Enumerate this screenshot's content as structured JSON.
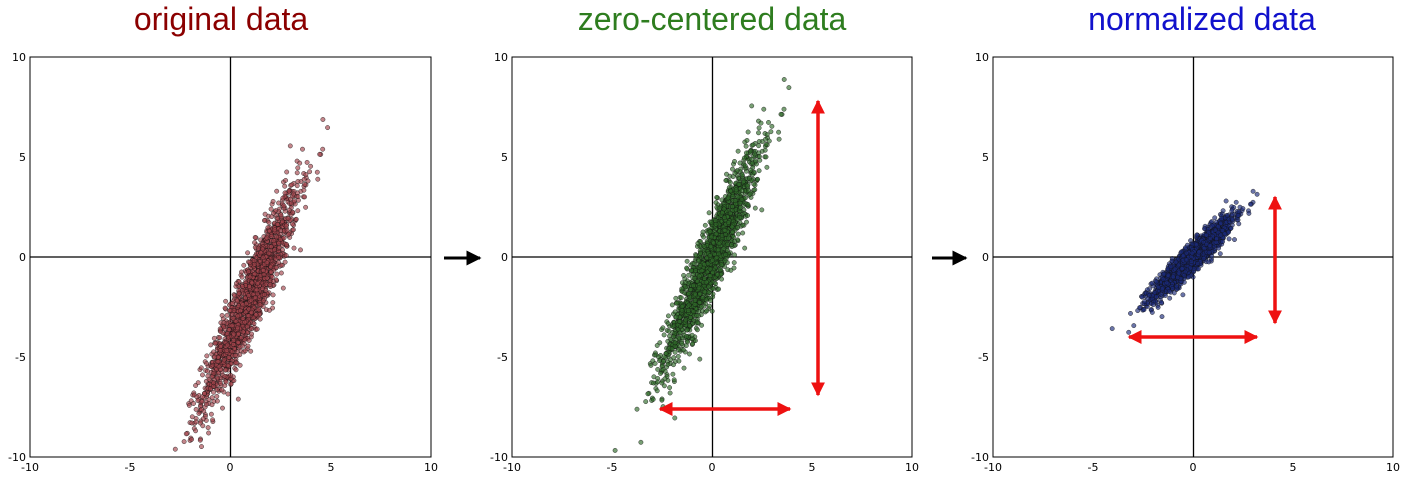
{
  "chart_data": [
    {
      "type": "scatter",
      "title": "original data",
      "title_color": "#8B0000",
      "point_color": "#A3434B",
      "xlim": [
        -10,
        10
      ],
      "ylim": [
        -10,
        10
      ],
      "x_ticks": [
        "-10",
        "-5",
        "0",
        "5",
        "10"
      ],
      "y_ticks": [
        "10",
        "5",
        "0",
        "-5",
        "-10"
      ],
      "grid": false,
      "distribution": {
        "mean_x": 1.0,
        "mean_y": -2.0,
        "std_x": 1.2,
        "std_y": 2.7,
        "correlation": 0.93,
        "count": 1600
      }
    },
    {
      "type": "scatter",
      "title": "zero-centered data",
      "title_color": "#2E7D1F",
      "point_color": "#2F6B2A",
      "xlim": [
        -10,
        10
      ],
      "ylim": [
        -10,
        10
      ],
      "x_ticks": [
        "-10",
        "-5",
        "0",
        "5",
        "10"
      ],
      "y_ticks": [
        "10",
        "5",
        "0",
        "-5",
        "-10"
      ],
      "grid": false,
      "distribution": {
        "mean_x": 0.0,
        "mean_y": 0.0,
        "std_x": 1.2,
        "std_y": 2.7,
        "correlation": 0.93,
        "count": 1600
      },
      "annotations": [
        {
          "type": "double-arrow",
          "color": "#EE1111",
          "from": [
            -2.6,
            -7.6
          ],
          "to": [
            3.9,
            -7.6
          ]
        },
        {
          "type": "double-arrow",
          "color": "#EE1111",
          "from": [
            5.3,
            7.8
          ],
          "to": [
            5.3,
            -6.9
          ]
        }
      ]
    },
    {
      "type": "scatter",
      "title": "normalized data",
      "title_color": "#1111CC",
      "point_color": "#1A2A7A",
      "xlim": [
        -10,
        10
      ],
      "ylim": [
        -10,
        10
      ],
      "x_ticks": [
        "-10",
        "-5",
        "0",
        "5",
        "10"
      ],
      "y_ticks": [
        "10",
        "5",
        "0",
        "-5",
        "-10"
      ],
      "grid": false,
      "distribution": {
        "mean_x": 0.0,
        "mean_y": 0.0,
        "std_x": 1.0,
        "std_y": 1.0,
        "correlation": 0.93,
        "count": 1600
      },
      "annotations": [
        {
          "type": "double-arrow",
          "color": "#EE1111",
          "from": [
            -3.2,
            -4.0
          ],
          "to": [
            3.2,
            -4.0
          ]
        },
        {
          "type": "double-arrow",
          "color": "#EE1111",
          "from": [
            4.1,
            3.0
          ],
          "to": [
            4.1,
            -3.3
          ]
        }
      ]
    }
  ],
  "connectors": {
    "color": "#000000",
    "icon": "right-arrow-icon"
  }
}
